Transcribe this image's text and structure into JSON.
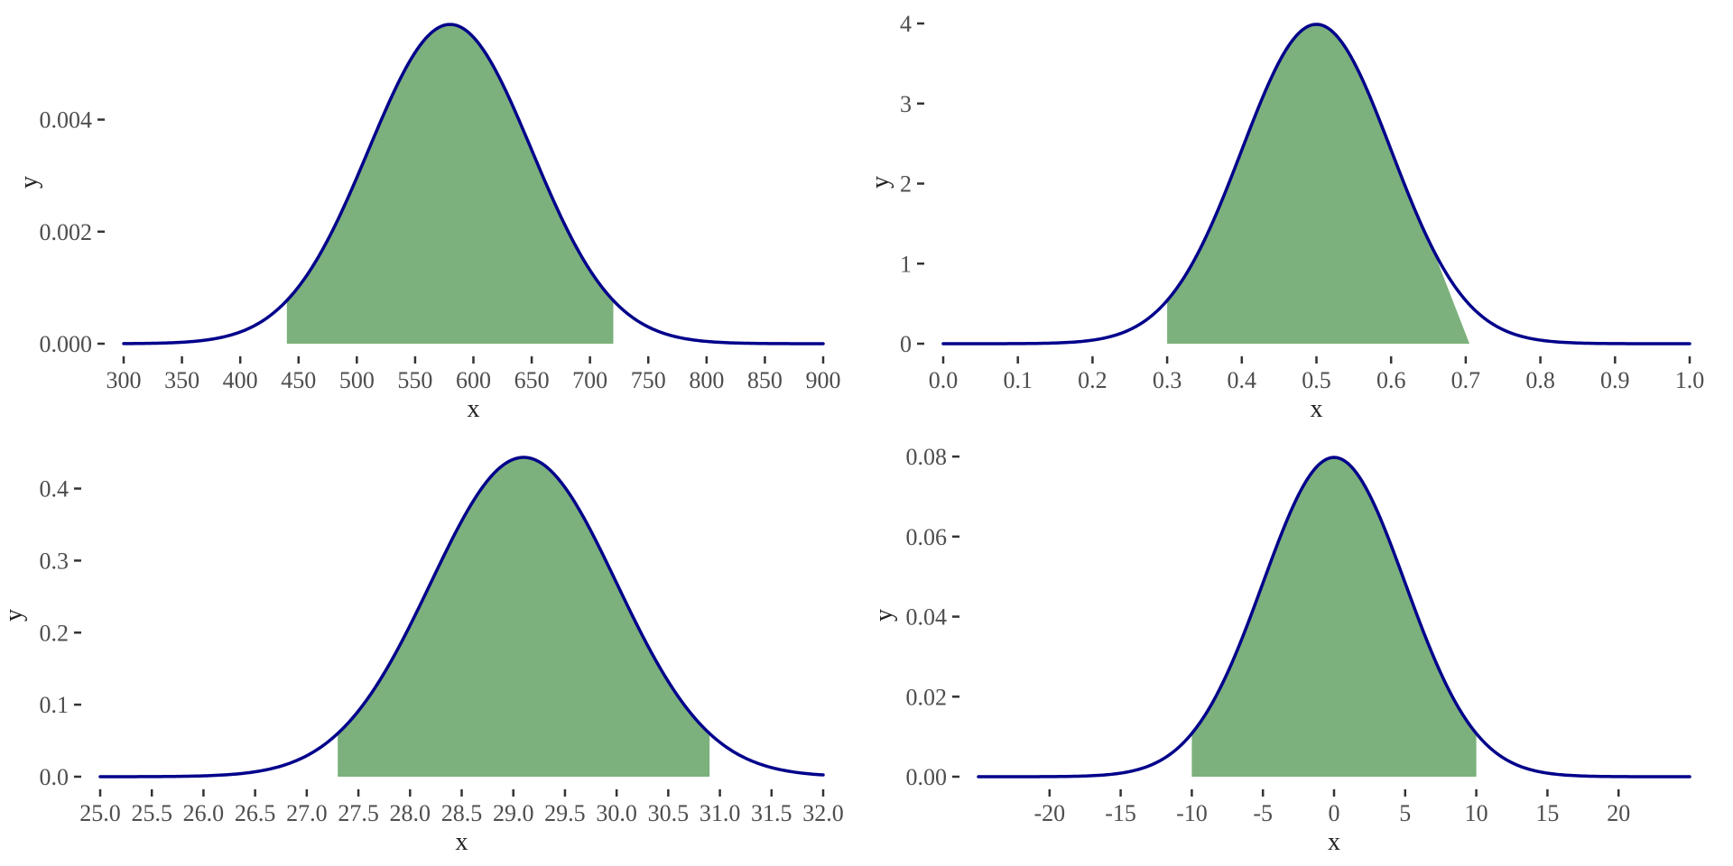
{
  "page": {
    "background": "#ffffff"
  },
  "style": {
    "curve_color": "#00008b",
    "fill_color": "#7cb07c",
    "tick_color": "#333333",
    "tick_label_color": "#4d4d4d",
    "axis_title_color": "#222222",
    "panel_background": "#ffffff"
  },
  "chart_data": [
    {
      "id": "top-left",
      "type": "area",
      "description": "Normal density curve, mean 580, sd 70, shaded region between 440 and 720 (mean ± 2 sd)",
      "xlabel": "x",
      "ylabel": "y",
      "mean": 580,
      "sd": 70,
      "curve_domain": [
        300,
        900
      ],
      "shaded_interval": [
        440,
        720
      ],
      "ylim": [
        0,
        0.0057
      ],
      "grid": false,
      "legend": false,
      "x_ticks": [
        {
          "v": 300,
          "label": "300"
        },
        {
          "v": 350,
          "label": "350"
        },
        {
          "v": 400,
          "label": "400"
        },
        {
          "v": 450,
          "label": "450"
        },
        {
          "v": 500,
          "label": "500"
        },
        {
          "v": 550,
          "label": "550"
        },
        {
          "v": 600,
          "label": "600"
        },
        {
          "v": 650,
          "label": "650"
        },
        {
          "v": 700,
          "label": "700"
        },
        {
          "v": 750,
          "label": "750"
        },
        {
          "v": 800,
          "label": "800"
        },
        {
          "v": 850,
          "label": "850"
        },
        {
          "v": 900,
          "label": "900"
        }
      ],
      "y_ticks": [
        {
          "v": 0,
          "label": "0.000"
        },
        {
          "v": 0.002,
          "label": "0.002"
        },
        {
          "v": 0.004,
          "label": "0.004"
        }
      ]
    },
    {
      "id": "top-right",
      "type": "area",
      "description": "Normal density curve, mean 0.5, sd 0.1, shaded region between 0.3 and 0.7 (mean ± 2 sd)",
      "xlabel": "x",
      "ylabel": "y",
      "mean": 0.5,
      "sd": 0.1,
      "curve_domain": [
        0,
        1
      ],
      "shaded_interval": [
        0.3,
        0.7
      ],
      "shade_right_edge": {
        "follow_curve_until": 0.655,
        "baseline_end": 0.705
      },
      "ylim": [
        0,
        3.989
      ],
      "grid": false,
      "legend": false,
      "x_ticks": [
        {
          "v": 0.0,
          "label": "0.0"
        },
        {
          "v": 0.1,
          "label": "0.1"
        },
        {
          "v": 0.2,
          "label": "0.2"
        },
        {
          "v": 0.3,
          "label": "0.3"
        },
        {
          "v": 0.4,
          "label": "0.4"
        },
        {
          "v": 0.5,
          "label": "0.5"
        },
        {
          "v": 0.6,
          "label": "0.6"
        },
        {
          "v": 0.7,
          "label": "0.7"
        },
        {
          "v": 0.8,
          "label": "0.8"
        },
        {
          "v": 0.9,
          "label": "0.9"
        },
        {
          "v": 1.0,
          "label": "1.0"
        }
      ],
      "y_ticks": [
        {
          "v": 0,
          "label": "0"
        },
        {
          "v": 1,
          "label": "1"
        },
        {
          "v": 2,
          "label": "2"
        },
        {
          "v": 3,
          "label": "3"
        },
        {
          "v": 4,
          "label": "4"
        }
      ]
    },
    {
      "id": "bottom-left",
      "type": "area",
      "description": "Normal density curve, mean 29.1, sd 0.9, shaded region between 27.3 and 30.9 (mean ± 2 sd)",
      "xlabel": "x",
      "ylabel": "y",
      "mean": 29.1,
      "sd": 0.9,
      "curve_domain": [
        25,
        32
      ],
      "shaded_interval": [
        27.3,
        30.9
      ],
      "ylim": [
        0,
        0.4433
      ],
      "grid": false,
      "legend": false,
      "x_ticks": [
        {
          "v": 25.0,
          "label": "25.0"
        },
        {
          "v": 25.5,
          "label": "25.5"
        },
        {
          "v": 26.0,
          "label": "26.0"
        },
        {
          "v": 26.5,
          "label": "26.5"
        },
        {
          "v": 27.0,
          "label": "27.0"
        },
        {
          "v": 27.5,
          "label": "27.5"
        },
        {
          "v": 28.0,
          "label": "28.0"
        },
        {
          "v": 28.5,
          "label": "28.5"
        },
        {
          "v": 29.0,
          "label": "29.0"
        },
        {
          "v": 29.5,
          "label": "29.5"
        },
        {
          "v": 30.0,
          "label": "30.0"
        },
        {
          "v": 30.5,
          "label": "30.5"
        },
        {
          "v": 31.0,
          "label": "31.0"
        },
        {
          "v": 31.5,
          "label": "31.5"
        },
        {
          "v": 32.0,
          "label": "32.0"
        }
      ],
      "y_ticks": [
        {
          "v": 0,
          "label": "0.0"
        },
        {
          "v": 0.1,
          "label": "0.1"
        },
        {
          "v": 0.2,
          "label": "0.2"
        },
        {
          "v": 0.3,
          "label": "0.3"
        },
        {
          "v": 0.4,
          "label": "0.4"
        }
      ]
    },
    {
      "id": "bottom-right",
      "type": "area",
      "description": "Normal density curve, mean 0, sd 5, shaded region between -10 and 10 (mean ± 2 sd)",
      "xlabel": "x",
      "ylabel": "y",
      "mean": 0,
      "sd": 5,
      "curve_domain": [
        -25,
        25
      ],
      "shaded_interval": [
        -10,
        10
      ],
      "ylim": [
        0,
        0.0798
      ],
      "grid": false,
      "legend": false,
      "x_ticks": [
        {
          "v": -20,
          "label": "-20"
        },
        {
          "v": -15,
          "label": "-15"
        },
        {
          "v": -10,
          "label": "-10"
        },
        {
          "v": -5,
          "label": "-5"
        },
        {
          "v": 0,
          "label": "0"
        },
        {
          "v": 5,
          "label": "5"
        },
        {
          "v": 10,
          "label": "10"
        },
        {
          "v": 15,
          "label": "15"
        },
        {
          "v": 20,
          "label": "20"
        }
      ],
      "y_ticks": [
        {
          "v": 0,
          "label": "0.00"
        },
        {
          "v": 0.02,
          "label": "0.02"
        },
        {
          "v": 0.04,
          "label": "0.04"
        },
        {
          "v": 0.06,
          "label": "0.06"
        },
        {
          "v": 0.08,
          "label": "0.08"
        }
      ]
    }
  ]
}
